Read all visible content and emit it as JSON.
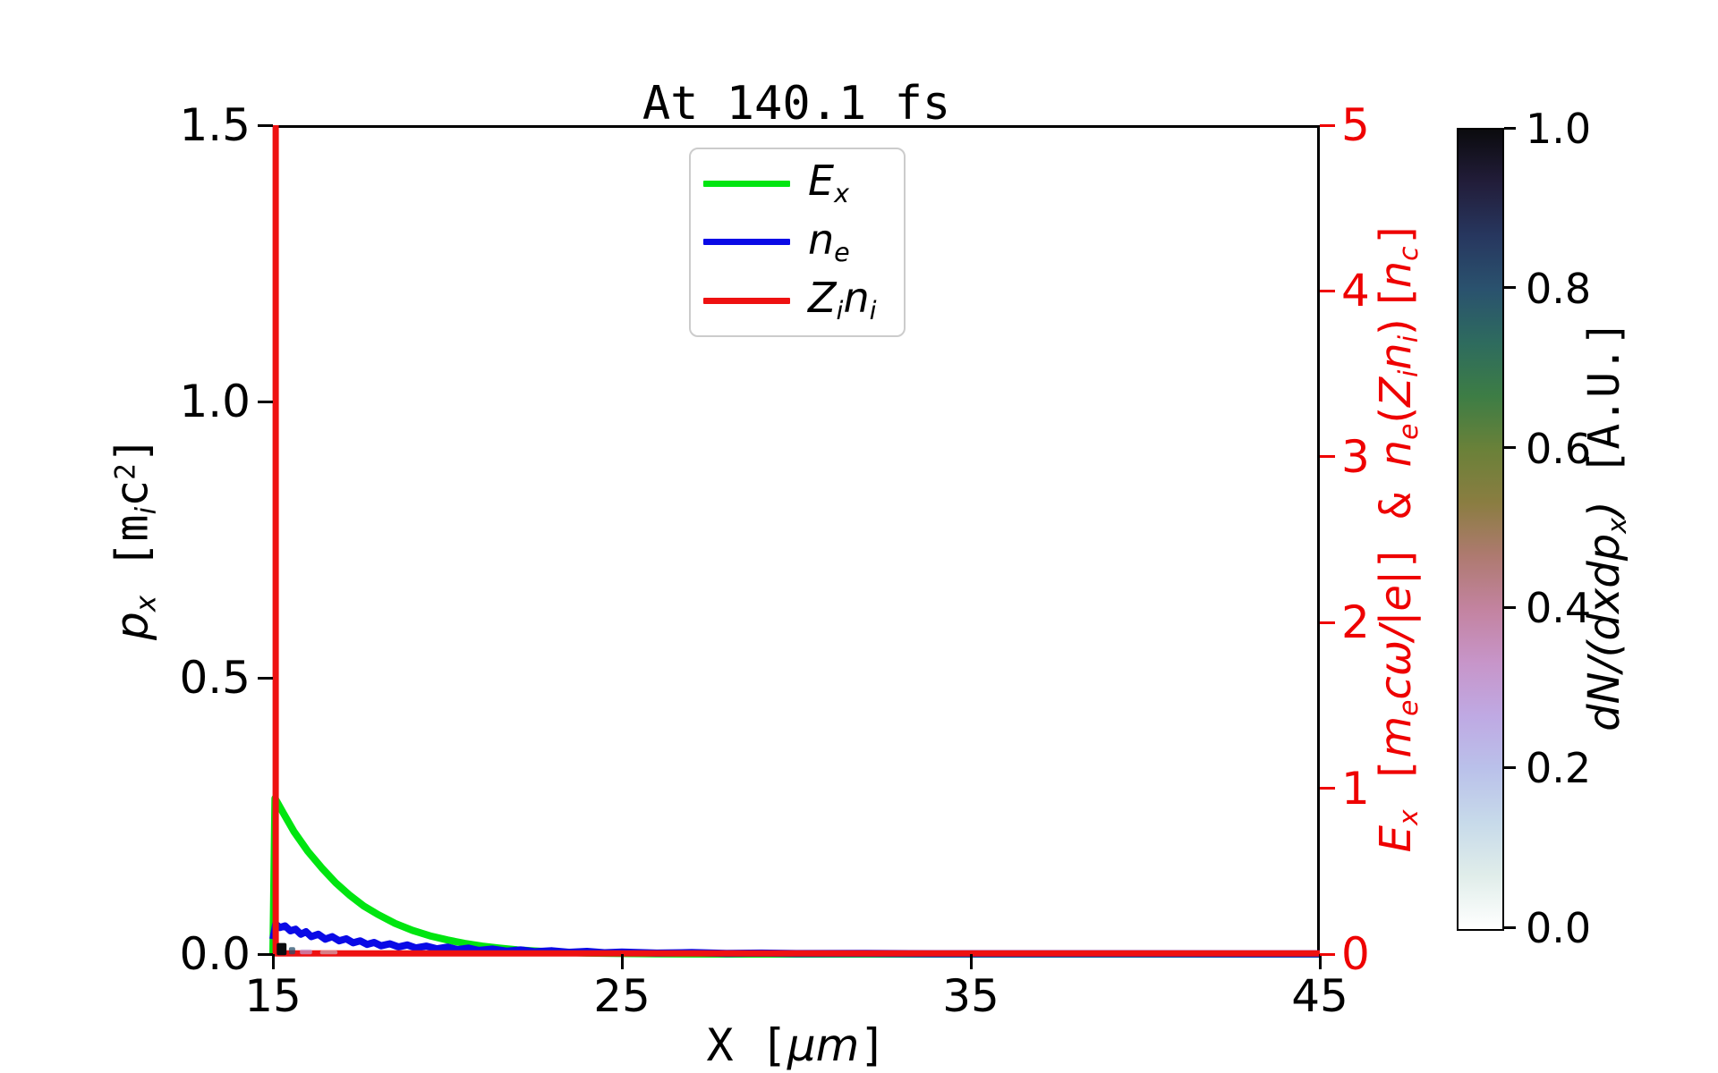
{
  "figure": {
    "title": "At 140.1 fs",
    "background": "#ffffff"
  },
  "x_axis": {
    "label_pre": "X [",
    "label_math": "μm",
    "label_post": "]",
    "ticks": [
      "15",
      "25",
      "35",
      "45"
    ],
    "tick_values": [
      15,
      25,
      35,
      45
    ],
    "range": [
      15,
      45
    ]
  },
  "left_axis": {
    "label_p": "p",
    "label_p_sub": "x",
    "label_unit_pre": " [m",
    "label_unit_sub": "i",
    "label_unit_c": "c",
    "label_unit_sup": "2",
    "label_unit_post": "]",
    "ticks": [
      "0.0",
      "0.5",
      "1.0",
      "1.5"
    ],
    "tick_values": [
      0,
      0.5,
      1.0,
      1.5
    ],
    "range": [
      0,
      1.5
    ]
  },
  "right_axis": {
    "color": "#ee0000",
    "ticks": [
      "0",
      "1",
      "2",
      "3",
      "4",
      "5"
    ],
    "tick_values": [
      0,
      1,
      2,
      3,
      4,
      5
    ],
    "range": [
      0,
      5
    ],
    "label": {
      "E": "E",
      "E_sub": "x",
      "b1": " [",
      "m": "m",
      "m_sub": "e",
      "mid": "cω/|e|",
      "b2": "] & ",
      "n": "n",
      "n_sub": "e",
      "p1": "(",
      "Z": "Z",
      "Z_sub": "i",
      "n2": "n",
      "n2_sub": "i",
      "p2": ") [",
      "nc": "n",
      "nc_sub": "c",
      "b3": "]"
    }
  },
  "legend": {
    "items": [
      {
        "main": "E",
        "sub": "x",
        "main2": "",
        "sub2": "",
        "color": "#00e510"
      },
      {
        "main": "n",
        "sub": "e",
        "main2": "",
        "sub2": "",
        "color": "#0a0ae6"
      },
      {
        "main": "Z",
        "sub": "i",
        "main2": "n",
        "sub2": "i",
        "color": "#ee1111"
      }
    ]
  },
  "colorbar": {
    "ticks": [
      "1.0",
      "0.8",
      "0.6",
      "0.4",
      "0.2",
      "0.0"
    ],
    "tick_values": [
      1.0,
      0.8,
      0.6,
      0.4,
      0.2,
      0.0
    ],
    "label_math": "dN/(dxdp",
    "label_math_sub": "x",
    "label_math_close": ")",
    "label_unit": " [A.U.]",
    "colors_top_to_bottom": [
      "#0b0b0e",
      "#221d3a",
      "#27375f",
      "#2a526e",
      "#2e6b5e",
      "#3d7d45",
      "#6a8139",
      "#8a7d41",
      "#ae7a70",
      "#c383a0",
      "#c795c9",
      "#bfa9e3",
      "#bac1ea",
      "#c7daea",
      "#e0edea",
      "#ffffff"
    ]
  },
  "chart_data": {
    "type": "line",
    "title": "At 140.1 fs",
    "xlabel": "X [μm]",
    "xlim": [
      15,
      45
    ],
    "ylabel_left": "p_x [m_i c^2]",
    "ylim_left": [
      0,
      1.5
    ],
    "ylabel_right": "E_x [m_e cω/|e|] & n_e(Z_i n_i) [n_c]",
    "ylim_right": [
      0,
      5
    ],
    "colorbar_label": "dN/(dxdp_x) [A.U.]",
    "colorbar_range": [
      0,
      1
    ],
    "grid": false,
    "legend_position": "upper center",
    "series": [
      {
        "name": "E_x",
        "axis": "right",
        "color": "#00e510",
        "width": 8,
        "points": [
          [
            15.0,
            0.0
          ],
          [
            15.06,
            0.94
          ],
          [
            15.3,
            0.85
          ],
          [
            15.6,
            0.74
          ],
          [
            16.0,
            0.62
          ],
          [
            16.4,
            0.52
          ],
          [
            16.8,
            0.43
          ],
          [
            17.2,
            0.355
          ],
          [
            17.6,
            0.29
          ],
          [
            18.0,
            0.24
          ],
          [
            18.5,
            0.185
          ],
          [
            19.0,
            0.143
          ],
          [
            19.5,
            0.11
          ],
          [
            20.0,
            0.085
          ],
          [
            20.5,
            0.064
          ],
          [
            21.0,
            0.048
          ],
          [
            21.5,
            0.036
          ],
          [
            22.0,
            0.026
          ],
          [
            22.5,
            0.019
          ],
          [
            23.0,
            0.013
          ],
          [
            23.5,
            0.009
          ],
          [
            24.0,
            0.006
          ],
          [
            25.0,
            0.003
          ],
          [
            26.0,
            0.001
          ],
          [
            28.0,
            0.0
          ],
          [
            45.0,
            0.0
          ]
        ]
      },
      {
        "name": "n_e",
        "axis": "right",
        "color": "#0a0ae6",
        "width": 8,
        "points": [
          [
            15.0,
            0.09
          ],
          [
            15.08,
            0.18
          ],
          [
            15.2,
            0.16
          ],
          [
            15.35,
            0.17
          ],
          [
            15.5,
            0.14
          ],
          [
            15.65,
            0.15
          ],
          [
            15.8,
            0.12
          ],
          [
            15.95,
            0.135
          ],
          [
            16.1,
            0.105
          ],
          [
            16.3,
            0.12
          ],
          [
            16.5,
            0.09
          ],
          [
            16.7,
            0.105
          ],
          [
            16.9,
            0.08
          ],
          [
            17.1,
            0.092
          ],
          [
            17.3,
            0.068
          ],
          [
            17.5,
            0.08
          ],
          [
            17.7,
            0.058
          ],
          [
            17.9,
            0.07
          ],
          [
            18.1,
            0.05
          ],
          [
            18.35,
            0.062
          ],
          [
            18.6,
            0.043
          ],
          [
            18.85,
            0.055
          ],
          [
            19.1,
            0.037
          ],
          [
            19.4,
            0.048
          ],
          [
            19.7,
            0.032
          ],
          [
            20.0,
            0.042
          ],
          [
            20.3,
            0.027
          ],
          [
            20.6,
            0.036
          ],
          [
            20.9,
            0.022
          ],
          [
            21.3,
            0.03
          ],
          [
            21.7,
            0.018
          ],
          [
            22.1,
            0.025
          ],
          [
            22.5,
            0.014
          ],
          [
            23.0,
            0.02
          ],
          [
            23.5,
            0.011
          ],
          [
            24.0,
            0.016
          ],
          [
            24.5,
            0.008
          ],
          [
            25.0,
            0.012
          ],
          [
            26.0,
            0.006
          ],
          [
            27.0,
            0.009
          ],
          [
            28.0,
            0.004
          ],
          [
            29.0,
            0.006
          ],
          [
            30.0,
            0.003
          ],
          [
            32.0,
            0.004
          ],
          [
            34.0,
            0.002
          ],
          [
            38.0,
            0.002
          ],
          [
            45.0,
            0.001
          ]
        ]
      },
      {
        "name": "Z_i n_i",
        "axis": "right",
        "color": "#ee1111",
        "width": 7,
        "segments": [
          [
            [
              15.08,
              0.0
            ],
            [
              15.08,
              5.0
            ]
          ],
          [
            [
              15.0,
              0.004
            ],
            [
              45.0,
              0.004
            ]
          ]
        ]
      }
    ],
    "phase_space_scatter": [
      {
        "x": 15.25,
        "p": 0.009,
        "w": 0.28,
        "h": 0.022,
        "color": "#0b0b0e",
        "opacity": 1.0
      },
      {
        "x": 15.55,
        "p": 0.006,
        "w": 0.18,
        "h": 0.013,
        "color": "#2a526e",
        "opacity": 0.75
      },
      {
        "x": 15.95,
        "p": 0.004,
        "w": 0.35,
        "h": 0.009,
        "color": "#bfa9e3",
        "opacity": 0.65
      },
      {
        "x": 16.6,
        "p": 0.003,
        "w": 0.5,
        "h": 0.007,
        "color": "#c7daea",
        "opacity": 0.55
      }
    ]
  }
}
